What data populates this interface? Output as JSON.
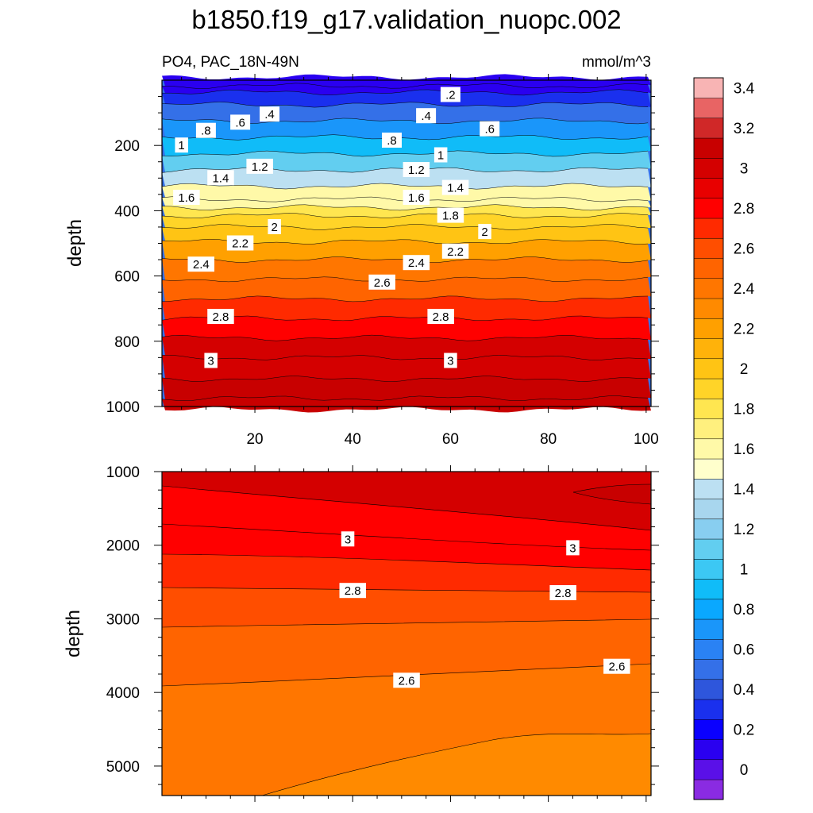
{
  "chart_data": {
    "type": "contour",
    "title": "b1850.f19_g17.validation_nuopc.002",
    "subtitle_left": "PO4, PAC_18N-49N",
    "subtitle_right": "mmol/m^3",
    "colorbar": {
      "tick_labels": [
        "0",
        "0.2",
        "0.4",
        "0.6",
        "0.8",
        "1",
        "1.2",
        "1.4",
        "1.6",
        "1.8",
        "2",
        "2.2",
        "2.4",
        "2.6",
        "2.8",
        "3",
        "3.2",
        "3.4"
      ],
      "tick_values": [
        0,
        0.2,
        0.4,
        0.6,
        0.8,
        1,
        1.2,
        1.4,
        1.6,
        1.8,
        2,
        2.2,
        2.4,
        2.6,
        2.8,
        3,
        3.2,
        3.4
      ],
      "colors": [
        "#8a2be2",
        "#5a10e8",
        "#2a00f0",
        "#0a00ff",
        "#1a30ee",
        "#2e56dc",
        "#3470e8",
        "#2a82f4",
        "#1a96fa",
        "#0aa8ff",
        "#10bcf8",
        "#3cc8f4",
        "#62cef0",
        "#88cef0",
        "#a8d6ee",
        "#bce0f2",
        "#ffffcc",
        "#fff9a8",
        "#fff07e",
        "#ffe650",
        "#ffd428",
        "#ffc414",
        "#ffb20a",
        "#ffa000",
        "#ff8a00",
        "#ff7600",
        "#ff6400",
        "#ff4e00",
        "#ff2a00",
        "#ff0000",
        "#e80000",
        "#d40000",
        "#c80000",
        "#d02828",
        "#e86464",
        "#f8b4b4"
      ]
    },
    "panels": [
      {
        "name": "upper",
        "ylabel": "depth",
        "ylim": [
          0,
          1000
        ],
        "yticks": [
          200,
          400,
          600,
          800,
          1000
        ],
        "xlim": [
          1,
          101
        ],
        "xticks": [
          20,
          40,
          60,
          80,
          100
        ],
        "depth_profile": [
          [
            10,
            0.05
          ],
          [
            25,
            0.1
          ],
          [
            50,
            0.25
          ],
          [
            100,
            0.45
          ],
          [
            150,
            0.7
          ],
          [
            200,
            0.95
          ],
          [
            250,
            1.15
          ],
          [
            300,
            1.35
          ],
          [
            350,
            1.55
          ],
          [
            380,
            1.65
          ],
          [
            400,
            1.78
          ],
          [
            430,
            1.9
          ],
          [
            470,
            2.05
          ],
          [
            520,
            2.2
          ],
          [
            580,
            2.4
          ],
          [
            640,
            2.55
          ],
          [
            700,
            2.7
          ],
          [
            760,
            2.82
          ],
          [
            820,
            2.95
          ],
          [
            880,
            3.02
          ],
          [
            950,
            3.08
          ],
          [
            1000,
            3.12
          ]
        ],
        "contour_labels": [
          {
            "text": ".2",
            "x": 60,
            "depth": 45
          },
          {
            "text": ".4",
            "x": 23,
            "depth": 105
          },
          {
            "text": ".4",
            "x": 55,
            "depth": 110
          },
          {
            "text": ".6",
            "x": 17,
            "depth": 130
          },
          {
            "text": ".6",
            "x": 68,
            "depth": 150
          },
          {
            "text": ".8",
            "x": 10,
            "depth": 155
          },
          {
            "text": ".8",
            "x": 48,
            "depth": 185
          },
          {
            "text": "1",
            "x": 5,
            "depth": 200
          },
          {
            "text": "1",
            "x": 58,
            "depth": 230
          },
          {
            "text": "1.2",
            "x": 21,
            "depth": 265
          },
          {
            "text": "1.2",
            "x": 53,
            "depth": 275
          },
          {
            "text": "1.4",
            "x": 13,
            "depth": 300
          },
          {
            "text": "1.4",
            "x": 61,
            "depth": 330
          },
          {
            "text": "1.6",
            "x": 6,
            "depth": 360
          },
          {
            "text": "1.6",
            "x": 53,
            "depth": 360
          },
          {
            "text": "1.8",
            "x": 60,
            "depth": 415
          },
          {
            "text": "2",
            "x": 24,
            "depth": 450
          },
          {
            "text": "2",
            "x": 67,
            "depth": 465
          },
          {
            "text": "2.2",
            "x": 17,
            "depth": 500
          },
          {
            "text": "2.2",
            "x": 61,
            "depth": 525
          },
          {
            "text": "2.4",
            "x": 9,
            "depth": 565
          },
          {
            "text": "2.4",
            "x": 53,
            "depth": 560
          },
          {
            "text": "2.6",
            "x": 46,
            "depth": 620
          },
          {
            "text": "2.8",
            "x": 13,
            "depth": 725
          },
          {
            "text": "2.8",
            "x": 58,
            "depth": 725
          },
          {
            "text": "3",
            "x": 11,
            "depth": 860
          },
          {
            "text": "3",
            "x": 60,
            "depth": 860
          }
        ]
      },
      {
        "name": "lower",
        "ylabel": "depth",
        "ylim": [
          1000,
          5400
        ],
        "yticks": [
          1000,
          2000,
          3000,
          4000,
          5000
        ],
        "xlim": [
          1,
          101
        ],
        "xticks": [
          20,
          40,
          60,
          80,
          100
        ],
        "contour_labels": [
          {
            "text": "3",
            "x": 39,
            "depth": 1920
          },
          {
            "text": "3",
            "x": 85,
            "depth": 2040
          },
          {
            "text": "2.8",
            "x": 40,
            "depth": 2620
          },
          {
            "text": "2.8",
            "x": 83,
            "depth": 2650
          },
          {
            "text": "2.6",
            "x": 51,
            "depth": 3840
          },
          {
            "text": "2.6",
            "x": 94,
            "depth": 3650
          }
        ]
      }
    ]
  }
}
